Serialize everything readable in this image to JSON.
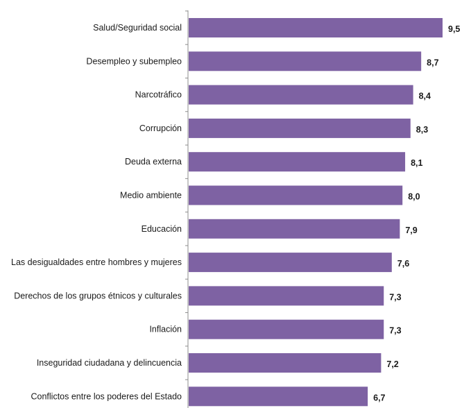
{
  "chart_data": {
    "type": "bar",
    "orientation": "horizontal",
    "title": "",
    "xlabel": "",
    "ylabel": "",
    "xlim": [
      0,
      9.5
    ],
    "grid": false,
    "legend": "none",
    "bar_color": "#7E62A3",
    "axis_color": "#8C8C8C",
    "categories": [
      "Salud/Seguridad social",
      "Desempleo y subempleo",
      "Narcotráfico",
      "Corrupción",
      "Deuda externa",
      "Medio ambiente",
      "Educación",
      "Las desigualdades entre hombres y mujeres",
      "Derechos de los grupos étnicos y culturales",
      "Inflación",
      "Inseguridad ciudadana y delincuencia",
      "Conflictos entre los poderes del Estado"
    ],
    "values": [
      9.5,
      8.7,
      8.4,
      8.3,
      8.1,
      8.0,
      7.9,
      7.6,
      7.3,
      7.3,
      7.2,
      6.7
    ],
    "value_labels": [
      "9,5",
      "8,7",
      "8,4",
      "8,3",
      "8,1",
      "8,0",
      "7,9",
      "7,6",
      "7,3",
      "7,3",
      "7,2",
      "6,7"
    ]
  }
}
